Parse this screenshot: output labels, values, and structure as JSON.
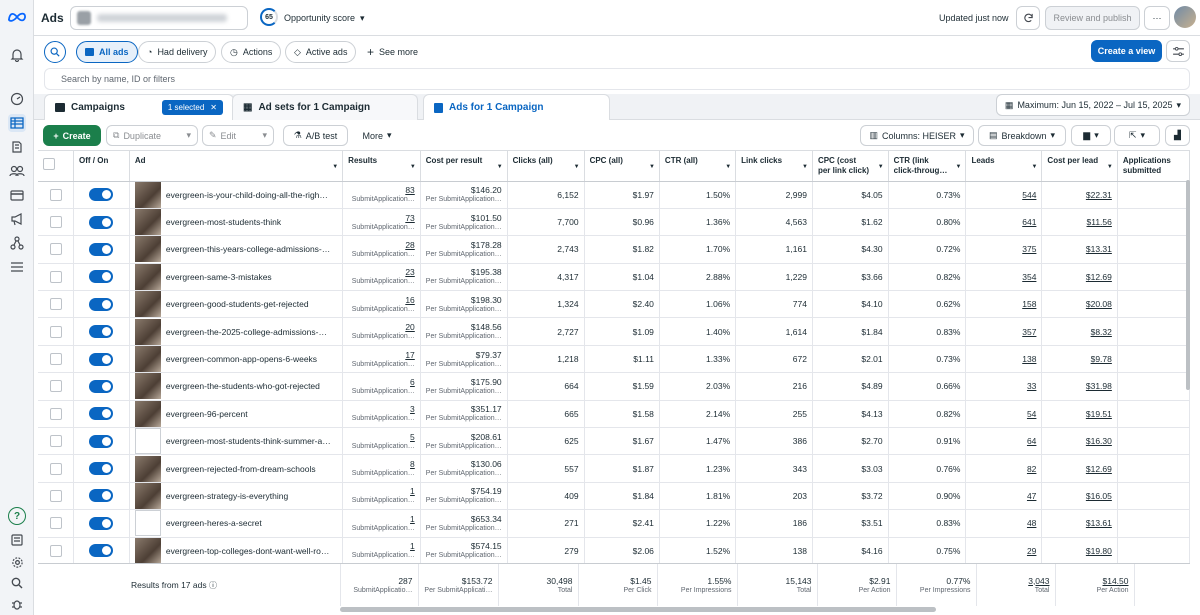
{
  "app": {
    "title": "Ads",
    "account_name": "",
    "opportunity_score": "65",
    "opportunity_label": "Opportunity score",
    "updated": "Updated just now",
    "review_label": "Review and publish",
    "more_label": "···"
  },
  "filters": {
    "all_ads": "All ads",
    "had_delivery": "Had delivery",
    "actions": "Actions",
    "active_ads": "Active ads",
    "see_more": "See more",
    "create_view": "Create a view"
  },
  "search": {
    "placeholder": "Search by name, ID or filters"
  },
  "tabs": {
    "campaigns": "Campaigns",
    "selected": "1 selected",
    "adsets": "Ad sets for 1 Campaign",
    "ads": "Ads for 1 Campaign",
    "date_range": "Maximum: Jun 15, 2022 – Jul 15, 2025"
  },
  "toolbar": {
    "create": "Create",
    "duplicate": "Duplicate",
    "edit": "Edit",
    "ab_test": "A/B test",
    "more": "More",
    "columns": "Columns: HEISER",
    "breakdown": "Breakdown"
  },
  "columns": [
    "Off / On",
    "Ad",
    "Results",
    "Cost per result",
    "Clicks (all)",
    "CPC (all)",
    "CTR (all)",
    "Link clicks",
    "CPC (cost per link click)",
    "CTR (link click-throug…",
    "Leads",
    "Cost per lead",
    "Applications submitted"
  ],
  "result_sub": "SubmitApplication…",
  "cost_sub": "Per SubmitApplication…",
  "rows": [
    {
      "ad": "evergreen-is-your-child-doing-all-the-righ…",
      "results": "83",
      "cost": "$146.20",
      "clicks": "6,152",
      "cpc": "$1.97",
      "ctr": "1.50%",
      "link": "2,999",
      "cpcl": "$4.05",
      "ctrl": "0.73%",
      "leads": "544",
      "cpl": "$22.31",
      "thumb": "img"
    },
    {
      "ad": "evergreen-most-students-think",
      "results": "73",
      "cost": "$101.50",
      "clicks": "7,700",
      "cpc": "$0.96",
      "ctr": "1.36%",
      "link": "4,563",
      "cpcl": "$1.62",
      "ctrl": "0.80%",
      "leads": "641",
      "cpl": "$11.56",
      "thumb": "img"
    },
    {
      "ad": "evergreen-this-years-college-admissions-…",
      "results": "28",
      "cost": "$178.28",
      "clicks": "2,743",
      "cpc": "$1.82",
      "ctr": "1.70%",
      "link": "1,161",
      "cpcl": "$4.30",
      "ctrl": "0.72%",
      "leads": "375",
      "cpl": "$13.31",
      "thumb": "img"
    },
    {
      "ad": "evergreen-same-3-mistakes",
      "results": "23",
      "cost": "$195.38",
      "clicks": "4,317",
      "cpc": "$1.04",
      "ctr": "2.88%",
      "link": "1,229",
      "cpcl": "$3.66",
      "ctrl": "0.82%",
      "leads": "354",
      "cpl": "$12.69",
      "thumb": "img"
    },
    {
      "ad": "evergreen-good-students-get-rejected",
      "results": "16",
      "cost": "$198.30",
      "clicks": "1,324",
      "cpc": "$2.40",
      "ctr": "1.06%",
      "link": "774",
      "cpcl": "$4.10",
      "ctrl": "0.62%",
      "leads": "158",
      "cpl": "$20.08",
      "thumb": "img"
    },
    {
      "ad": "evergreen-the-2025-college-admissions-…",
      "results": "20",
      "cost": "$148.56",
      "clicks": "2,727",
      "cpc": "$1.09",
      "ctr": "1.40%",
      "link": "1,614",
      "cpcl": "$1.84",
      "ctrl": "0.83%",
      "leads": "357",
      "cpl": "$8.32",
      "thumb": "img"
    },
    {
      "ad": "evergreen-common-app-opens-6-weeks",
      "results": "17",
      "cost": "$79.37",
      "clicks": "1,218",
      "cpc": "$1.11",
      "ctr": "1.33%",
      "link": "672",
      "cpcl": "$2.01",
      "ctrl": "0.73%",
      "leads": "138",
      "cpl": "$9.78",
      "thumb": "img"
    },
    {
      "ad": "evergreen-the-students-who-got-rejected",
      "results": "6",
      "cost": "$175.90",
      "clicks": "664",
      "cpc": "$1.59",
      "ctr": "2.03%",
      "link": "216",
      "cpcl": "$4.89",
      "ctrl": "0.66%",
      "leads": "33",
      "cpl": "$31.98",
      "thumb": "img"
    },
    {
      "ad": "evergreen-96-percent",
      "results": "3",
      "cost": "$351.17",
      "clicks": "665",
      "cpc": "$1.58",
      "ctr": "2.14%",
      "link": "255",
      "cpcl": "$4.13",
      "ctrl": "0.82%",
      "leads": "54",
      "cpl": "$19.51",
      "thumb": "img"
    },
    {
      "ad": "evergreen-most-students-think-summer-a…",
      "results": "5",
      "cost": "$208.61",
      "clicks": "625",
      "cpc": "$1.67",
      "ctr": "1.47%",
      "link": "386",
      "cpcl": "$2.70",
      "ctrl": "0.91%",
      "leads": "64",
      "cpl": "$16.30",
      "thumb": "blank"
    },
    {
      "ad": "evergreen-rejected-from-dream-schools",
      "results": "8",
      "cost": "$130.06",
      "clicks": "557",
      "cpc": "$1.87",
      "ctr": "1.23%",
      "link": "343",
      "cpcl": "$3.03",
      "ctrl": "0.76%",
      "leads": "82",
      "cpl": "$12.69",
      "thumb": "img"
    },
    {
      "ad": "evergreen-strategy-is-everything",
      "results": "1",
      "cost": "$754.19",
      "clicks": "409",
      "cpc": "$1.84",
      "ctr": "1.81%",
      "link": "203",
      "cpcl": "$3.72",
      "ctrl": "0.90%",
      "leads": "47",
      "cpl": "$16.05",
      "thumb": "img"
    },
    {
      "ad": "evergreen-heres-a-secret",
      "results": "1",
      "cost": "$653.34",
      "clicks": "271",
      "cpc": "$2.41",
      "ctr": "1.22%",
      "link": "186",
      "cpcl": "$3.51",
      "ctrl": "0.83%",
      "leads": "48",
      "cpl": "$13.61",
      "thumb": "blank"
    },
    {
      "ad": "evergreen-top-colleges-dont-want-well-ro…",
      "results": "1",
      "cost": "$574.15",
      "clicks": "279",
      "cpc": "$2.06",
      "ctr": "1.52%",
      "link": "138",
      "cpcl": "$4.16",
      "ctrl": "0.75%",
      "leads": "29",
      "cpl": "$19.80",
      "thumb": "img"
    }
  ],
  "totals": {
    "label": "Results from 17 ads",
    "results": "287",
    "results_sub": "SubmitApplicatio…",
    "cost": "$153.72",
    "cost_sub": "Per SubmitApplicati…",
    "clicks": "30,498",
    "clicks_sub": "Total",
    "cpc": "$1.45",
    "cpc_sub": "Per Click",
    "ctr": "1.55%",
    "ctr_sub": "Per Impressions",
    "link": "15,143",
    "link_sub": "Total",
    "cpcl": "$2.91",
    "cpcl_sub": "Per Action",
    "ctrl": "0.77%",
    "ctrl_sub": "Per Impressions",
    "leads": "3,043",
    "leads_sub": "Total",
    "cpl": "$14.50",
    "cpl_sub": "Per Action"
  },
  "colors": {
    "accent": "#0a66c2",
    "meta_blue": "#0866ff",
    "create_green": "#1b7f4b"
  }
}
